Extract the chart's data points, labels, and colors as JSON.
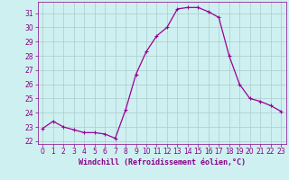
{
  "x": [
    0,
    1,
    2,
    3,
    4,
    5,
    6,
    7,
    8,
    9,
    10,
    11,
    12,
    13,
    14,
    15,
    16,
    17,
    18,
    19,
    20,
    21,
    22,
    23
  ],
  "y": [
    22.9,
    23.4,
    23.0,
    22.8,
    22.6,
    22.6,
    22.5,
    22.2,
    24.2,
    26.7,
    28.3,
    29.4,
    30.0,
    31.3,
    31.4,
    31.4,
    31.1,
    30.7,
    28.0,
    26.0,
    25.0,
    24.8,
    24.5,
    24.1
  ],
  "line_color": "#990099",
  "marker": "+",
  "marker_size": 3,
  "marker_lw": 0.8,
  "bg_color": "#cff0f0",
  "grid_color": "#aacccc",
  "xlabel": "Windchill (Refroidissement éolien,°C)",
  "xlim": [
    -0.5,
    23.5
  ],
  "ylim": [
    21.8,
    31.8
  ],
  "yticks": [
    22,
    23,
    24,
    25,
    26,
    27,
    28,
    29,
    30,
    31
  ],
  "xticks": [
    0,
    1,
    2,
    3,
    4,
    5,
    6,
    7,
    8,
    9,
    10,
    11,
    12,
    13,
    14,
    15,
    16,
    17,
    18,
    19,
    20,
    21,
    22,
    23
  ],
  "xlabel_fontsize": 6,
  "tick_fontsize": 5.5,
  "tick_color": "#880088",
  "line_width": 0.9,
  "spine_color": "#880088"
}
